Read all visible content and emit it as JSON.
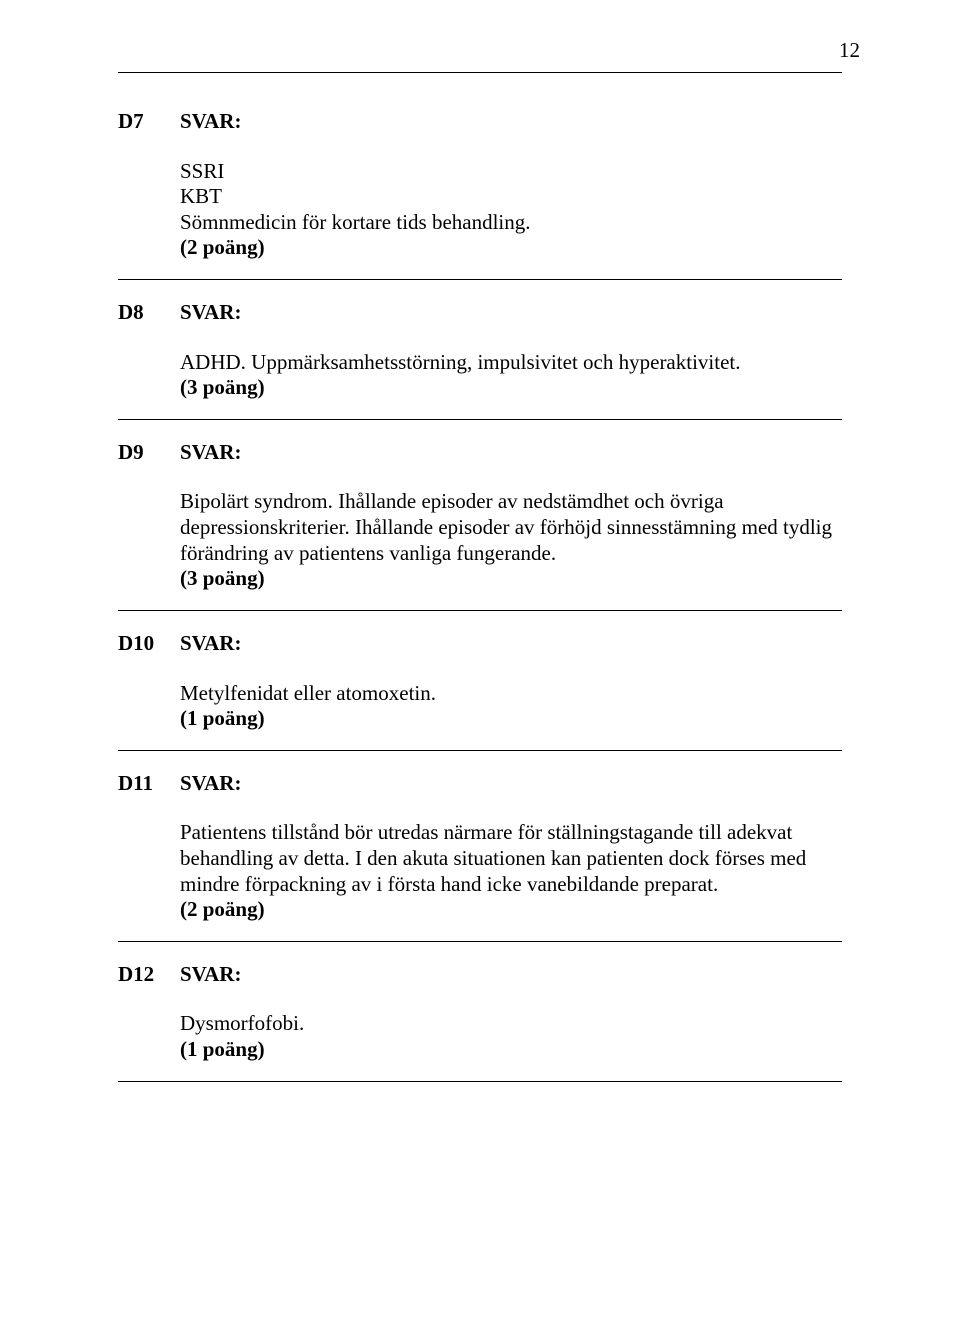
{
  "page_number": "12",
  "svar_label": "SVAR:",
  "blocks": [
    {
      "code": "D7",
      "body": "SSRI\nKBT\nSömnmedicin för kortare tids behandling.",
      "points": "(2 poäng)"
    },
    {
      "code": "D8",
      "body": "ADHD. Uppmärksamhetsstörning, impulsivitet och hyperaktivitet.",
      "points": "(3 poäng)"
    },
    {
      "code": "D9",
      "body": "Bipolärt syndrom. Ihållande episoder av nedstämdhet och övriga depressionskriterier. Ihållande episoder av förhöjd sinnesstämning med tydlig förändring av patientens vanliga fungerande.",
      "points": "(3 poäng)"
    },
    {
      "code": "D10",
      "body": "Metylfenidat eller atomoxetin.",
      "points": "(1 poäng)"
    },
    {
      "code": "D11",
      "body": "Patientens tillstånd bör utredas närmare för ställningstagande till adekvat behandling av detta. I den akuta situationen kan patienten dock förses med mindre förpackning av i första hand icke vanebildande preparat.",
      "points": "(2 poäng)"
    },
    {
      "code": "D12",
      "body": "Dysmorfofobi.",
      "points": "(1 poäng)"
    }
  ]
}
